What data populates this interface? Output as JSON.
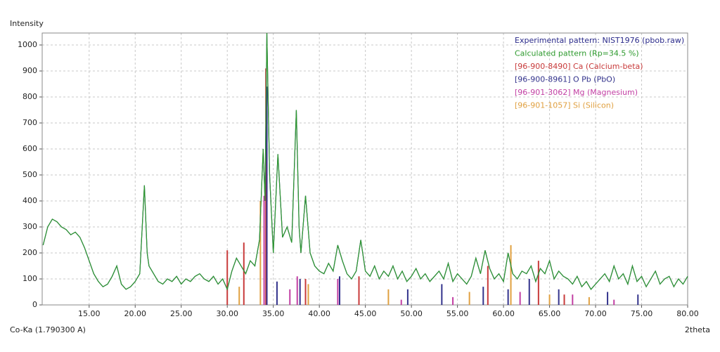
{
  "chart_data": {
    "type": "xrd",
    "y_label": "Intensity",
    "x_label": "2theta",
    "radiation": "Co-Ka (1.790300 A)",
    "xlim": [
      9.9,
      80
    ],
    "ylim": [
      0,
      1046
    ],
    "grid": true,
    "yticks": [
      0,
      100,
      200,
      300,
      400,
      500,
      600,
      700,
      800,
      900,
      1000
    ],
    "xticks": [
      {
        "value": 15,
        "label": "15.00"
      },
      {
        "value": 20,
        "label": "20.00"
      },
      {
        "value": 25,
        "label": "25.00"
      },
      {
        "value": 30,
        "label": "30.00"
      },
      {
        "value": 35,
        "label": "35.00"
      },
      {
        "value": 40,
        "label": "40.00"
      },
      {
        "value": 45,
        "label": "45.00"
      },
      {
        "value": 50,
        "label": "50.00"
      },
      {
        "value": 55,
        "label": "55.00"
      },
      {
        "value": 60,
        "label": "60.00"
      },
      {
        "value": 65,
        "label": "65.00"
      },
      {
        "value": 70,
        "label": "70.00"
      },
      {
        "value": 75,
        "label": "75.00"
      },
      {
        "value": 80,
        "label": "80.00"
      }
    ],
    "x": [
      10,
      10.5,
      11,
      11.5,
      12,
      12.5,
      13,
      13.5,
      14,
      14.5,
      15,
      15.5,
      16,
      16.5,
      17,
      17.5,
      18,
      18.5,
      19,
      19.5,
      20,
      20.5,
      21,
      21.3,
      21.5,
      22,
      22.5,
      23,
      23.5,
      24,
      24.5,
      25,
      25.5,
      26,
      26.5,
      27,
      27.5,
      28,
      28.5,
      29,
      29.5,
      30,
      30.5,
      31,
      31.5,
      32,
      32.5,
      33,
      33.5,
      33.9,
      34.1,
      34.3,
      34.6,
      35,
      35.5,
      36,
      36.5,
      37,
      37.5,
      37.8,
      38,
      38.5,
      39,
      39.5,
      40,
      40.5,
      41,
      41.5,
      42,
      42.5,
      43,
      43.5,
      44,
      44.5,
      45,
      45.5,
      46,
      46.5,
      47,
      47.5,
      48,
      48.5,
      49,
      49.5,
      50,
      50.5,
      51,
      51.5,
      52,
      52.5,
      53,
      53.5,
      54,
      54.5,
      55,
      55.5,
      56,
      56.5,
      57,
      57.5,
      58,
      58.5,
      59,
      59.5,
      60,
      60.5,
      61,
      61.5,
      62,
      62.5,
      63,
      63.5,
      64,
      64.5,
      65,
      65.5,
      66,
      66.5,
      67,
      67.5,
      68,
      68.5,
      69,
      69.5,
      70,
      70.5,
      71,
      71.5,
      72,
      72.5,
      73,
      73.5,
      74,
      74.5,
      75,
      75.5,
      76,
      76.5,
      77,
      77.5,
      78,
      78.5,
      79,
      79.5,
      80
    ],
    "series": [
      {
        "name": "Experimental pattern: NIST1976 (pbob.raw)",
        "color": "#2a2a8a",
        "style": "line",
        "values": [
          230,
          300,
          330,
          320,
          300,
          290,
          270,
          280,
          260,
          220,
          170,
          120,
          90,
          70,
          80,
          110,
          150,
          80,
          60,
          70,
          90,
          120,
          460,
          200,
          150,
          120,
          90,
          80,
          100,
          90,
          110,
          80,
          100,
          90,
          110,
          120,
          100,
          90,
          110,
          80,
          100,
          60,
          130,
          180,
          150,
          120,
          170,
          150,
          250,
          600,
          400,
          1046,
          500,
          200,
          580,
          260,
          300,
          240,
          750,
          300,
          200,
          420,
          200,
          150,
          130,
          120,
          160,
          130,
          230,
          170,
          120,
          100,
          130,
          250,
          130,
          110,
          150,
          100,
          130,
          110,
          150,
          100,
          130,
          90,
          110,
          140,
          100,
          120,
          90,
          110,
          130,
          100,
          160,
          90,
          120,
          100,
          80,
          110,
          180,
          120,
          210,
          140,
          100,
          120,
          90,
          200,
          120,
          100,
          130,
          120,
          150,
          90,
          140,
          120,
          170,
          100,
          130,
          110,
          100,
          80,
          110,
          70,
          90,
          60,
          80,
          100,
          120,
          90,
          150,
          100,
          120,
          80,
          150,
          90,
          110,
          70,
          100,
          130,
          80,
          100,
          110,
          70,
          100,
          80,
          110
        ]
      },
      {
        "name": "Calculated pattern (Rp=34.5 %)",
        "color": "#2e9a2e",
        "style": "line",
        "values": [
          230,
          300,
          330,
          320,
          300,
          290,
          270,
          280,
          260,
          220,
          170,
          120,
          90,
          70,
          80,
          110,
          150,
          80,
          60,
          70,
          90,
          120,
          460,
          200,
          150,
          120,
          90,
          80,
          100,
          90,
          110,
          80,
          100,
          90,
          110,
          120,
          100,
          90,
          110,
          80,
          100,
          60,
          130,
          180,
          150,
          120,
          170,
          150,
          250,
          600,
          400,
          1046,
          500,
          200,
          580,
          260,
          300,
          240,
          750,
          300,
          200,
          420,
          200,
          150,
          130,
          120,
          160,
          130,
          230,
          170,
          120,
          100,
          130,
          250,
          130,
          110,
          150,
          100,
          130,
          110,
          150,
          100,
          130,
          90,
          110,
          140,
          100,
          120,
          90,
          110,
          130,
          100,
          160,
          90,
          120,
          100,
          80,
          110,
          180,
          120,
          210,
          140,
          100,
          120,
          90,
          200,
          120,
          100,
          130,
          120,
          150,
          90,
          140,
          120,
          170,
          100,
          130,
          110,
          100,
          80,
          110,
          70,
          90,
          60,
          80,
          100,
          120,
          90,
          150,
          100,
          120,
          80,
          150,
          90,
          110,
          70,
          100,
          130,
          80,
          100,
          110,
          70,
          100,
          80,
          110
        ]
      },
      {
        "name": "[96-900-8490] Ca  (Calcium-beta)",
        "color": "#c83a3a",
        "style": "stick",
        "x": [
          30.0,
          31.8,
          34.2,
          38.5,
          44.3,
          58.3,
          63.8,
          66.6
        ],
        "values": [
          210,
          240,
          910,
          100,
          110,
          150,
          170,
          40
        ]
      },
      {
        "name": "[96-900-8961] O Pb  (PbO)",
        "color": "#33338c",
        "style": "stick",
        "x": [
          34.3,
          35.4,
          37.9,
          42.2,
          49.6,
          53.3,
          57.8,
          60.5,
          62.8,
          66.0,
          71.3,
          74.6
        ],
        "values": [
          840,
          90,
          100,
          110,
          60,
          80,
          70,
          60,
          100,
          60,
          50,
          40
        ]
      },
      {
        "name": "[96-901-3062] Mg  (Magnesium)",
        "color": "#c23fa3",
        "style": "stick",
        "x": [
          34.0,
          36.8,
          37.6,
          42.0,
          48.9,
          54.5,
          61.8,
          67.5,
          72.0
        ],
        "values": [
          420,
          60,
          110,
          100,
          20,
          30,
          50,
          40,
          20
        ]
      },
      {
        "name": "[96-901-1057] Si  (Silicon)",
        "color": "#e0a040",
        "style": "stick",
        "x": [
          31.3,
          33.6,
          38.8,
          47.5,
          56.3,
          60.8,
          65.0,
          69.3
        ],
        "values": [
          70,
          400,
          80,
          60,
          50,
          230,
          40,
          30
        ]
      }
    ]
  }
}
